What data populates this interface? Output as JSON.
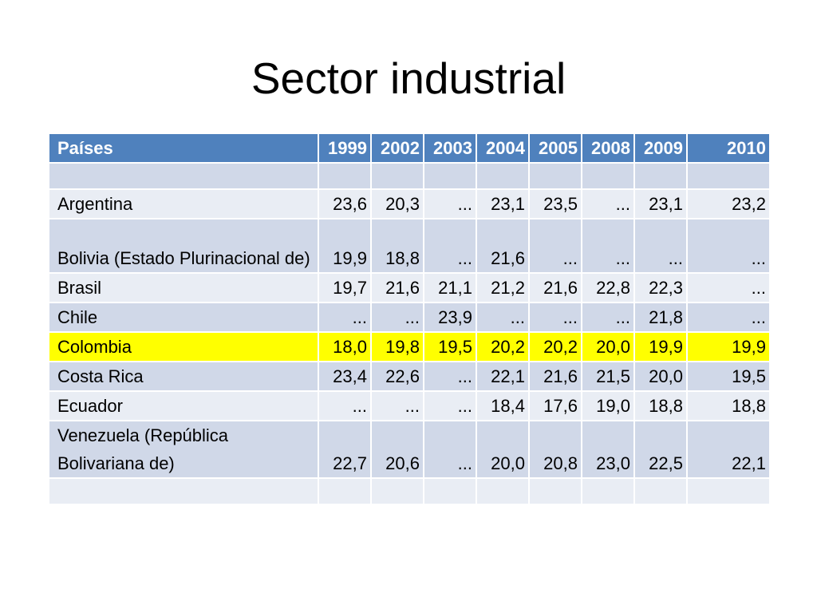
{
  "slide": {
    "title": "Sector industrial"
  },
  "colors": {
    "header": "#4f81bd",
    "row_dark": "#d0d8e8",
    "row_light": "#e9edf4",
    "highlight": "#ffff00"
  },
  "table": {
    "headers": [
      "Países",
      "1999",
      "2002",
      "2003",
      "2004",
      "2005",
      "2008",
      "2009",
      "2010"
    ],
    "rows": [
      {
        "country": "",
        "values": [
          "",
          "",
          "",
          "",
          "",
          "",
          "",
          ""
        ]
      },
      {
        "country": "Argentina",
        "values": [
          "23,6",
          "20,3",
          "...",
          "23,1",
          "23,5",
          "...",
          "23,1",
          "23,2"
        ]
      },
      {
        "country": "Bolivia (Estado Plurinacional de)",
        "values": [
          "19,9",
          "18,8",
          "...",
          "21,6",
          "...",
          "...",
          "...",
          "..."
        ]
      },
      {
        "country": "Brasil",
        "values": [
          "19,7",
          "21,6",
          "21,1",
          "21,2",
          "21,6",
          "22,8",
          "22,3",
          "..."
        ]
      },
      {
        "country": "Chile",
        "values": [
          "...",
          "...",
          "23,9",
          "...",
          "...",
          "...",
          "21,8",
          "..."
        ]
      },
      {
        "country": "Colombia",
        "values": [
          "18,0",
          "19,8",
          "19,5",
          "20,2",
          "20,2",
          "20,0",
          "19,9",
          "19,9"
        ]
      },
      {
        "country": "Costa Rica",
        "values": [
          "23,4",
          "22,6",
          "...",
          "22,1",
          "21,6",
          "21,5",
          "20,0",
          "19,5"
        ]
      },
      {
        "country": "Ecuador",
        "values": [
          "...",
          "...",
          "...",
          "18,4",
          "17,6",
          "19,0",
          "18,8",
          "18,8"
        ]
      },
      {
        "country": "Venezuela (República Bolivariana de)",
        "values": [
          "22,7",
          "20,6",
          "...",
          "20,0",
          "20,8",
          "23,0",
          "22,5",
          "22,1"
        ]
      },
      {
        "country": "",
        "values": [
          "",
          "",
          "",
          "",
          "",
          "",
          "",
          ""
        ]
      }
    ]
  }
}
